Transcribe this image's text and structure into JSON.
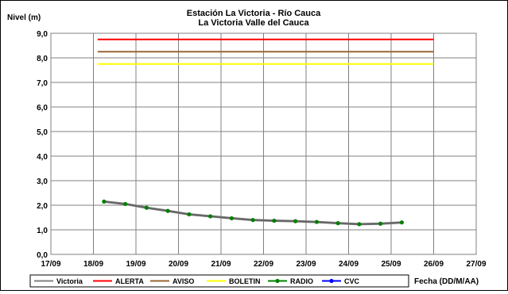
{
  "chart_data": {
    "type": "line",
    "title": "Estación La Victoria - Río Cauca",
    "subtitle": "La Victoria Valle del Cauca",
    "ylabel": "Nivel (m)",
    "xlabel": "Fecha (DD/M/AA)",
    "ylim": [
      0,
      9
    ],
    "yticks": [
      "0,0",
      "1,0",
      "2,0",
      "3,0",
      "4,0",
      "5,0",
      "6,0",
      "7,0",
      "8,0",
      "9,0"
    ],
    "xlim_days": [
      17,
      27
    ],
    "xticks": [
      "17/09",
      "18/09",
      "19/09",
      "20/09",
      "21/09",
      "22/09",
      "23/09",
      "24/09",
      "25/09",
      "26/09",
      "27/09"
    ],
    "grid": true,
    "legend_position": "bottom",
    "thresholds": [
      {
        "name": "ALERTA",
        "value": 8.75,
        "x": [
          18.1,
          26.0
        ],
        "color": "#ff0000"
      },
      {
        "name": "AVISO",
        "value": 8.25,
        "x": [
          18.1,
          26.0
        ],
        "color": "#996633"
      },
      {
        "name": "BOLETIN",
        "value": 7.75,
        "x": [
          18.1,
          26.0
        ],
        "color": "#ffff00"
      }
    ],
    "series": [
      {
        "name": "Victoria",
        "color": "#808080",
        "x": [
          18.25,
          18.75,
          19.25,
          19.75,
          20.25,
          20.75,
          21.25,
          21.75,
          22.25,
          22.75,
          23.25,
          23.75,
          24.25,
          24.75,
          25.25
        ],
        "values": [
          2.15,
          2.05,
          1.9,
          1.77,
          1.63,
          1.55,
          1.47,
          1.4,
          1.37,
          1.35,
          1.32,
          1.27,
          1.23,
          1.25,
          1.3
        ]
      },
      {
        "name": "RADIO",
        "color": "#008000",
        "x": [
          18.25,
          18.75,
          19.25,
          19.75,
          20.25,
          20.75,
          21.25,
          21.75,
          22.25,
          22.75,
          23.25,
          23.75,
          24.25,
          24.75,
          25.25
        ],
        "values": [
          2.15,
          2.05,
          1.9,
          1.77,
          1.63,
          1.55,
          1.47,
          1.4,
          1.37,
          1.35,
          1.32,
          1.27,
          1.23,
          1.25,
          1.3
        ]
      },
      {
        "name": "CVC",
        "color": "#0000ff",
        "x": [],
        "values": []
      }
    ],
    "legend": [
      {
        "name": "Victoria",
        "color": "#808080",
        "marker": false
      },
      {
        "name": "ALERTA",
        "color": "#ff0000",
        "marker": false
      },
      {
        "name": "AVISO",
        "color": "#996633",
        "marker": false
      },
      {
        "name": "BOLETIN",
        "color": "#ffff00",
        "marker": false
      },
      {
        "name": "RADIO",
        "color": "#008000",
        "marker": true
      },
      {
        "name": "CVC",
        "color": "#0000ff",
        "marker": true
      }
    ]
  }
}
